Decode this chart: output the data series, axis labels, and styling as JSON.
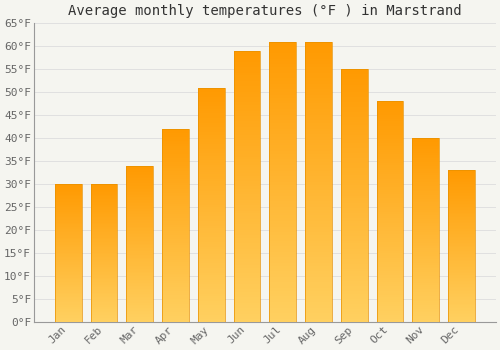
{
  "title": "Average monthly temperatures (°F ) in Marstrand",
  "months": [
    "Jan",
    "Feb",
    "Mar",
    "Apr",
    "May",
    "Jun",
    "Jul",
    "Aug",
    "Sep",
    "Oct",
    "Nov",
    "Dec"
  ],
  "values": [
    30,
    30,
    34,
    42,
    51,
    59,
    61,
    61,
    55,
    48,
    40,
    33
  ],
  "bar_color_top": "#FFA500",
  "bar_color_bottom": "#FFD060",
  "bar_edge_color": "#E89000",
  "background_color": "#F5F5F0",
  "grid_color": "#DDDDDD",
  "ylim": [
    0,
    65
  ],
  "yticks": [
    0,
    5,
    10,
    15,
    20,
    25,
    30,
    35,
    40,
    45,
    50,
    55,
    60,
    65
  ],
  "title_fontsize": 10,
  "tick_fontsize": 8,
  "figwidth": 5.0,
  "figheight": 3.5,
  "dpi": 100
}
